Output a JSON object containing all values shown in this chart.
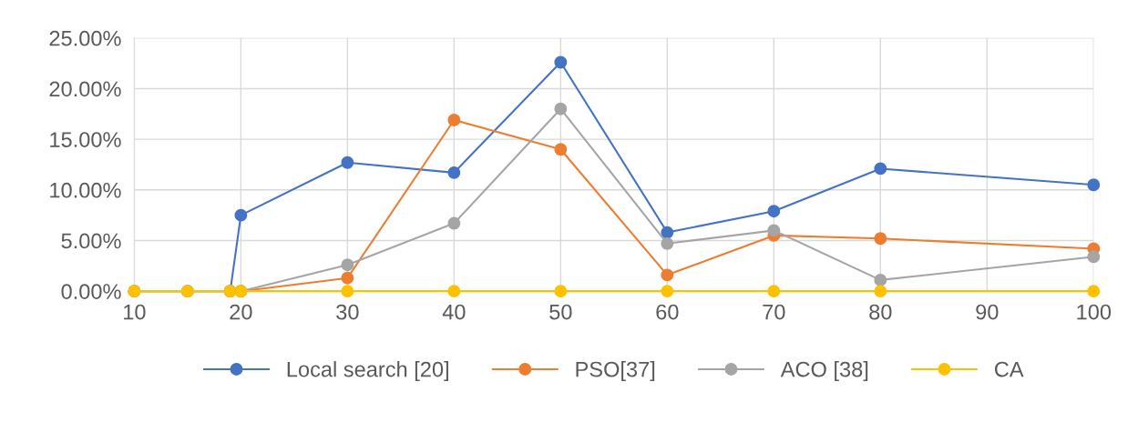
{
  "chart_data": {
    "type": "line",
    "x": [
      10,
      15,
      19,
      20,
      30,
      40,
      50,
      60,
      70,
      80,
      100
    ],
    "series": [
      {
        "name": "Local search [20]",
        "color": "#4472c4",
        "values": [
          0,
          0,
          0,
          7.5,
          12.7,
          11.7,
          22.6,
          5.8,
          7.9,
          12.1,
          10.5
        ]
      },
      {
        "name": "PSO[37]",
        "color": "#ed7d31",
        "values": [
          null,
          null,
          0,
          0,
          1.3,
          16.9,
          14.0,
          1.6,
          5.5,
          5.2,
          4.2
        ]
      },
      {
        "name": "ACO [38]",
        "color": "#a5a5a5",
        "values": [
          0,
          0,
          0,
          0,
          2.6,
          6.7,
          18.0,
          4.7,
          6.0,
          1.1,
          3.4
        ]
      },
      {
        "name": "CA",
        "color": "#ffc000",
        "values": [
          0,
          0,
          0,
          0,
          0,
          0,
          0,
          0,
          0,
          0,
          0
        ]
      }
    ],
    "xlim": [
      10,
      100
    ],
    "xticks": [
      10,
      20,
      30,
      40,
      50,
      60,
      70,
      80,
      90,
      100
    ],
    "ylim": [
      0,
      25
    ],
    "yticks": [
      {
        "value": 0,
        "label": "0.00%"
      },
      {
        "value": 5,
        "label": "5.00%"
      },
      {
        "value": 10,
        "label": "10.00%"
      },
      {
        "value": 15,
        "label": "15.00%"
      },
      {
        "value": 20,
        "label": "20.00%"
      },
      {
        "value": 25,
        "label": "25.00%"
      }
    ],
    "grid": true,
    "legend": "bottom",
    "marker": "circle",
    "line_style": "solid"
  }
}
